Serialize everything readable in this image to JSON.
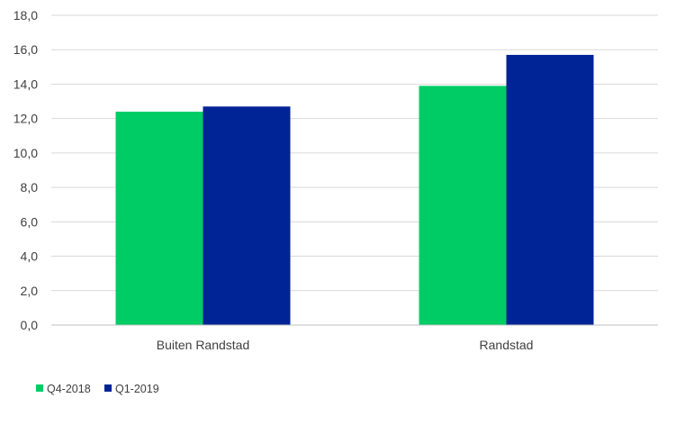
{
  "chart_data": {
    "type": "bar",
    "title": "",
    "xlabel": "",
    "ylabel": "",
    "ylim": [
      0,
      18
    ],
    "ytick_step": 2,
    "ytick_labels": [
      "0,0",
      "2,0",
      "4,0",
      "6,0",
      "8,0",
      "10,0",
      "12,0",
      "14,0",
      "16,0",
      "18,0"
    ],
    "categories": [
      "Buiten Randstad",
      "Randstad"
    ],
    "series": [
      {
        "name": "Q4-2018",
        "values": [
          12.4,
          13.9
        ],
        "color": "#00cc66"
      },
      {
        "name": "Q1-2019",
        "values": [
          12.7,
          15.7
        ],
        "color": "#002395"
      }
    ],
    "grid": true,
    "legend_position": "bottom-left"
  }
}
